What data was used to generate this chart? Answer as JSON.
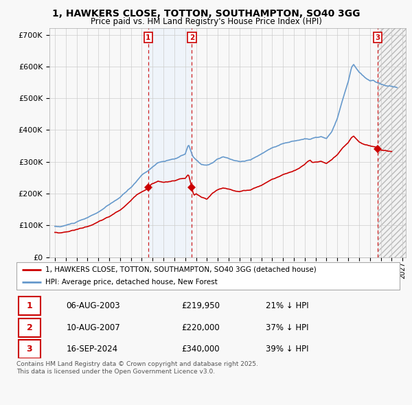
{
  "title": "1, HAWKERS CLOSE, TOTTON, SOUTHAMPTON, SO40 3GG",
  "subtitle": "Price paid vs. HM Land Registry's House Price Index (HPI)",
  "ylim": [
    0,
    720000
  ],
  "yticks": [
    0,
    100000,
    200000,
    300000,
    400000,
    500000,
    600000,
    700000
  ],
  "ytick_labels": [
    "£0",
    "£100K",
    "£200K",
    "£300K",
    "£400K",
    "£500K",
    "£600K",
    "£700K"
  ],
  "xlim_left": 1994.5,
  "xlim_right": 2027.3,
  "sale_dates_num": [
    2003.59,
    2007.6,
    2024.71
  ],
  "sale_prices": [
    219950,
    220000,
    340000
  ],
  "sale_labels": [
    "1",
    "2",
    "3"
  ],
  "legend_red": "1, HAWKERS CLOSE, TOTTON, SOUTHAMPTON, SO40 3GG (detached house)",
  "legend_blue": "HPI: Average price, detached house, New Forest",
  "table_rows": [
    [
      "1",
      "06-AUG-2003",
      "£219,950",
      "21% ↓ HPI"
    ],
    [
      "2",
      "10-AUG-2007",
      "£220,000",
      "37% ↓ HPI"
    ],
    [
      "3",
      "16-SEP-2024",
      "£340,000",
      "39% ↓ HPI"
    ]
  ],
  "footer": "Contains HM Land Registry data © Crown copyright and database right 2025.\nThis data is licensed under the Open Government Licence v3.0.",
  "red_color": "#cc0000",
  "blue_color": "#6699cc",
  "shade_color_12": "#ddeeff",
  "background_color": "#f8f8f8",
  "grid_color": "#cccccc"
}
